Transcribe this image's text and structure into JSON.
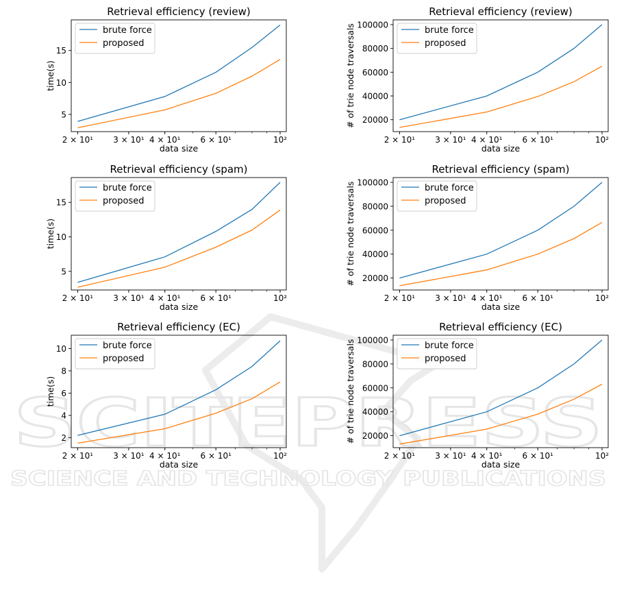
{
  "watermark": {
    "main": "SCITEPRESS",
    "sub": "SCIENCE AND TECHNOLOGY PUBLICATIONS"
  },
  "colors": {
    "brute_force": "#1f77b4",
    "proposed": "#ff7f0e"
  },
  "chart_data": [
    {
      "type": "line",
      "title": "Retrieval efficiency (review)",
      "xlabel": "data size",
      "ylabel": "time(s)",
      "xscale": "log",
      "xlim": [
        19,
        105
      ],
      "ylim": [
        2.3,
        19.8
      ],
      "xticks": [
        {
          "v": 20,
          "label": "2 × 10¹"
        },
        {
          "v": 30,
          "label": "3 × 10¹"
        },
        {
          "v": 40,
          "label": "4 × 10¹"
        },
        {
          "v": 60,
          "label": "6 × 10¹"
        },
        {
          "v": 100,
          "label": "10²"
        }
      ],
      "yticks": [
        {
          "v": 5,
          "label": "5"
        },
        {
          "v": 10,
          "label": "10"
        },
        {
          "v": 15,
          "label": "15"
        }
      ],
      "legend": "top-left",
      "x": [
        20,
        40,
        60,
        80,
        100
      ],
      "series": [
        {
          "name": "brute force",
          "color": "#1f77b4",
          "values": [
            3.9,
            7.8,
            11.6,
            15.5,
            19.0
          ]
        },
        {
          "name": "proposed",
          "color": "#ff7f0e",
          "values": [
            2.9,
            5.7,
            8.3,
            11.0,
            13.6
          ]
        }
      ]
    },
    {
      "type": "line",
      "title": "Retrieval efficiency (review)",
      "xlabel": "data size",
      "ylabel": "# of trie node traversals",
      "xscale": "log",
      "xlim": [
        19,
        105
      ],
      "ylim": [
        10000,
        104000
      ],
      "xticks": [
        {
          "v": 20,
          "label": "2 × 10¹"
        },
        {
          "v": 30,
          "label": "3 × 10¹"
        },
        {
          "v": 40,
          "label": "4 × 10¹"
        },
        {
          "v": 60,
          "label": "6 × 10¹"
        },
        {
          "v": 100,
          "label": "10²"
        }
      ],
      "yticks": [
        {
          "v": 20000,
          "label": "20000"
        },
        {
          "v": 40000,
          "label": "40000"
        },
        {
          "v": 60000,
          "label": "60000"
        },
        {
          "v": 80000,
          "label": "80000"
        },
        {
          "v": 100000,
          "label": "100000"
        }
      ],
      "legend": "top-left",
      "x": [
        20,
        40,
        60,
        80,
        100
      ],
      "series": [
        {
          "name": "brute force",
          "color": "#1f77b4",
          "values": [
            20000,
            40000,
            60000,
            80000,
            100000
          ]
        },
        {
          "name": "proposed",
          "color": "#ff7f0e",
          "values": [
            13500,
            26500,
            39500,
            52000,
            65000
          ]
        }
      ]
    },
    {
      "type": "line",
      "title": "Retrieval efficiency (spam)",
      "xlabel": "data size",
      "ylabel": "time(s)",
      "xscale": "log",
      "xlim": [
        19,
        105
      ],
      "ylim": [
        2.3,
        18.6
      ],
      "xticks": [
        {
          "v": 20,
          "label": "2 × 10¹"
        },
        {
          "v": 30,
          "label": "3 × 10¹"
        },
        {
          "v": 40,
          "label": "4 × 10¹"
        },
        {
          "v": 60,
          "label": "6 × 10¹"
        },
        {
          "v": 100,
          "label": "10²"
        }
      ],
      "yticks": [
        {
          "v": 5,
          "label": "5"
        },
        {
          "v": 10,
          "label": "10"
        },
        {
          "v": 15,
          "label": "15"
        }
      ],
      "legend": "top-left",
      "x": [
        20,
        40,
        60,
        80,
        100
      ],
      "series": [
        {
          "name": "brute force",
          "color": "#1f77b4",
          "values": [
            3.4,
            7.1,
            10.8,
            14.0,
            17.9
          ]
        },
        {
          "name": "proposed",
          "color": "#ff7f0e",
          "values": [
            2.7,
            5.6,
            8.5,
            11.0,
            13.9
          ]
        }
      ]
    },
    {
      "type": "line",
      "title": "Retrieval efficiency (spam)",
      "xlabel": "data size",
      "ylabel": "# of trie node traversals",
      "xscale": "log",
      "xlim": [
        19,
        105
      ],
      "ylim": [
        10000,
        104000
      ],
      "xticks": [
        {
          "v": 20,
          "label": "2 × 10¹"
        },
        {
          "v": 30,
          "label": "3 × 10¹"
        },
        {
          "v": 40,
          "label": "4 × 10¹"
        },
        {
          "v": 60,
          "label": "6 × 10¹"
        },
        {
          "v": 100,
          "label": "10²"
        }
      ],
      "yticks": [
        {
          "v": 20000,
          "label": "20000"
        },
        {
          "v": 40000,
          "label": "40000"
        },
        {
          "v": 60000,
          "label": "60000"
        },
        {
          "v": 80000,
          "label": "80000"
        },
        {
          "v": 100000,
          "label": "100000"
        }
      ],
      "legend": "top-left",
      "x": [
        20,
        40,
        60,
        80,
        100
      ],
      "series": [
        {
          "name": "brute force",
          "color": "#1f77b4",
          "values": [
            20000,
            40000,
            60000,
            80000,
            100000
          ]
        },
        {
          "name": "proposed",
          "color": "#ff7f0e",
          "values": [
            13500,
            26800,
            40000,
            53000,
            66500
          ]
        }
      ]
    },
    {
      "type": "line",
      "title": "Retrieval efficiency (EC)",
      "xlabel": "data size",
      "ylabel": "time(s)",
      "xscale": "log",
      "xlim": [
        19,
        105
      ],
      "ylim": [
        1.1,
        11.2
      ],
      "xticks": [
        {
          "v": 20,
          "label": "2 × 10¹"
        },
        {
          "v": 30,
          "label": "3 × 10¹"
        },
        {
          "v": 40,
          "label": "4 × 10¹"
        },
        {
          "v": 60,
          "label": "6 × 10¹"
        },
        {
          "v": 100,
          "label": "10²"
        }
      ],
      "yticks": [
        {
          "v": 2,
          "label": "2"
        },
        {
          "v": 4,
          "label": "4"
        },
        {
          "v": 6,
          "label": "6"
        },
        {
          "v": 8,
          "label": "8"
        },
        {
          "v": 10,
          "label": "10"
        }
      ],
      "legend": "top-left",
      "x": [
        20,
        40,
        60,
        80,
        100
      ],
      "series": [
        {
          "name": "brute force",
          "color": "#1f77b4",
          "values": [
            2.2,
            4.1,
            6.3,
            8.4,
            10.7
          ]
        },
        {
          "name": "proposed",
          "color": "#ff7f0e",
          "values": [
            1.5,
            2.8,
            4.2,
            5.5,
            7.0
          ]
        }
      ]
    },
    {
      "type": "line",
      "title": "Retrieval efficiency (EC)",
      "xlabel": "data size",
      "ylabel": "# of trie node traversals",
      "xscale": "log",
      "xlim": [
        19,
        105
      ],
      "ylim": [
        10000,
        104000
      ],
      "xticks": [
        {
          "v": 20,
          "label": "2 × 10¹"
        },
        {
          "v": 30,
          "label": "3 × 10¹"
        },
        {
          "v": 40,
          "label": "4 × 10¹"
        },
        {
          "v": 60,
          "label": "6 × 10¹"
        },
        {
          "v": 100,
          "label": "10²"
        }
      ],
      "yticks": [
        {
          "v": 20000,
          "label": "20000"
        },
        {
          "v": 40000,
          "label": "40000"
        },
        {
          "v": 60000,
          "label": "60000"
        },
        {
          "v": 80000,
          "label": "80000"
        },
        {
          "v": 100000,
          "label": "100000"
        }
      ],
      "legend": "top-left",
      "x": [
        20,
        40,
        60,
        80,
        100
      ],
      "series": [
        {
          "name": "brute force",
          "color": "#1f77b4",
          "values": [
            20000,
            40000,
            60000,
            80000,
            100000
          ]
        },
        {
          "name": "proposed",
          "color": "#ff7f0e",
          "values": [
            13000,
            25500,
            38000,
            50500,
            63000
          ]
        }
      ]
    }
  ]
}
